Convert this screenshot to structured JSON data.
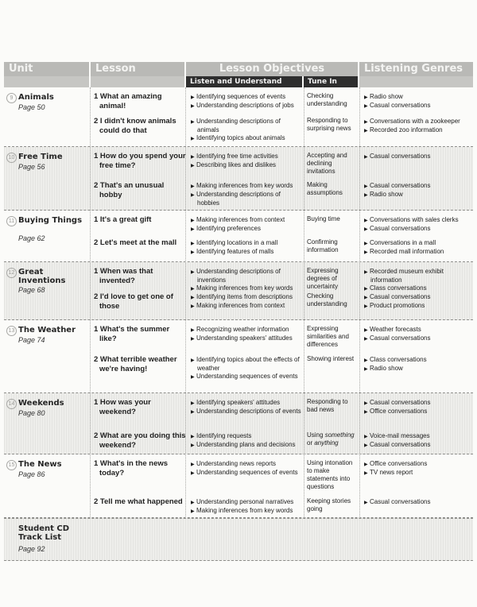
{
  "header": {
    "unit": "Unit",
    "lesson": "Lesson",
    "objectives": "Lesson Objectives",
    "genres": "Listening Genres",
    "listen": "Listen and Understand",
    "tune": "Tune In"
  },
  "units": [
    {
      "number": "9",
      "title": "Animals",
      "page": "Page 50",
      "lessons": [
        {
          "title": "1 What an amazing animal!",
          "listen": [
            "Identifying sequences of events",
            "Understanding descriptions of jobs"
          ],
          "tune": "Checking understanding",
          "genres": [
            "Radio show",
            "Casual conversations"
          ]
        },
        {
          "title": "2 I didn't know animals could do that",
          "listen": [
            "Understanding descriptions of animals",
            "Identifying topics about animals"
          ],
          "tune": "Responding to surprising news",
          "genres": [
            "Conversations with a zookeeper",
            "Recorded zoo information"
          ]
        }
      ]
    },
    {
      "number": "10",
      "title": "Free Time",
      "page": "Page 56",
      "lessons": [
        {
          "title": "1 How do you spend your free time?",
          "listen": [
            "Identifying free time activities",
            "Describing likes and dislikes"
          ],
          "tune": "Accepting and declining invitations",
          "genres": [
            "Casual conversations"
          ]
        },
        {
          "title": "2 That's an unusual hobby",
          "listen": [
            "Making inferences from key words",
            "Understanding descriptions of hobbies"
          ],
          "tune": "Making assumptions",
          "genres": [
            "Casual conversations",
            "Radio show"
          ]
        }
      ]
    },
    {
      "number": "11",
      "title": "Buying Things",
      "page": "Page 62",
      "lessons": [
        {
          "title": "1 It's a great gift",
          "listen": [
            "Making inferences from context",
            "Identifying preferences"
          ],
          "tune": "Buying time",
          "genres": [
            "Conversations with sales clerks",
            "Casual conversations"
          ]
        },
        {
          "title": "2 Let's meet at the mall",
          "listen": [
            "Identifying locations in a mall",
            "Identifying features of malls"
          ],
          "tune": "Confirming information",
          "genres": [
            "Conversations in a mall",
            "Recorded mall information"
          ]
        }
      ]
    },
    {
      "number": "12",
      "title": "Great Inventions",
      "page": "Page 68",
      "lessons": [
        {
          "title": "1 When was that invented?",
          "listen": [
            "Understanding descriptions of inventions",
            "Making inferences from key words"
          ],
          "tune": "Expressing degrees of uncertainty",
          "genres": [
            "Recorded museum exhibit information",
            "Class conversations"
          ]
        },
        {
          "title": "2 I'd love to get one of those",
          "listen": [
            "Identifying items from descriptions",
            "Making inferences from context"
          ],
          "tune": "Checking understanding",
          "genres": [
            "Casual conversations",
            "Product promotions"
          ]
        }
      ]
    },
    {
      "number": "13",
      "title": "The Weather",
      "page": "Page 74",
      "lessons": [
        {
          "title": "1 What's the summer like?",
          "listen": [
            "Recognizing weather information",
            "Understanding speakers' attitudes"
          ],
          "tune": "Expressing similarities and differences",
          "genres": [
            "Weather forecasts",
            "Casual conversations"
          ]
        },
        {
          "title": "2 What terrible weather we're having!",
          "listen": [
            "Identifying topics about the effects of weather",
            "Understanding sequences of events"
          ],
          "tune": "Showing interest",
          "genres": [
            "Class conversations",
            "Radio show"
          ]
        }
      ]
    },
    {
      "number": "14",
      "title": "Weekends",
      "page": "Page 80",
      "lessons": [
        {
          "title": "1 How was your weekend?",
          "listen": [
            "Identifying speakers' attitudes",
            "Understanding descriptions of events"
          ],
          "tune": "Responding to bad news",
          "genres": [
            "Casual conversations",
            "Office conversations"
          ]
        },
        {
          "title": "2 What are you doing this weekend?",
          "listen": [
            "Identifying requests",
            "Understanding plans and decisions"
          ],
          "tune": "Using something or anything",
          "genres": [
            "Voice-mail messages",
            "Casual conversations"
          ]
        }
      ]
    },
    {
      "number": "15",
      "title": "The News",
      "page": "Page 86",
      "lessons": [
        {
          "title": "1 What's in the news today?",
          "listen": [
            "Understanding news reports",
            "Understanding sequences of events"
          ],
          "tune": "Using intonation to make statements into questions",
          "genres": [
            "Office conversations",
            "TV news report"
          ]
        },
        {
          "title": "2 Tell me what happened",
          "listen": [
            "Understanding personal narratives",
            "Making inferences from key words"
          ],
          "tune": "Keeping stories going",
          "genres": [
            "Casual conversations"
          ]
        }
      ]
    }
  ],
  "track_list": {
    "title": "Student CD Track List",
    "page": "Page 92"
  }
}
